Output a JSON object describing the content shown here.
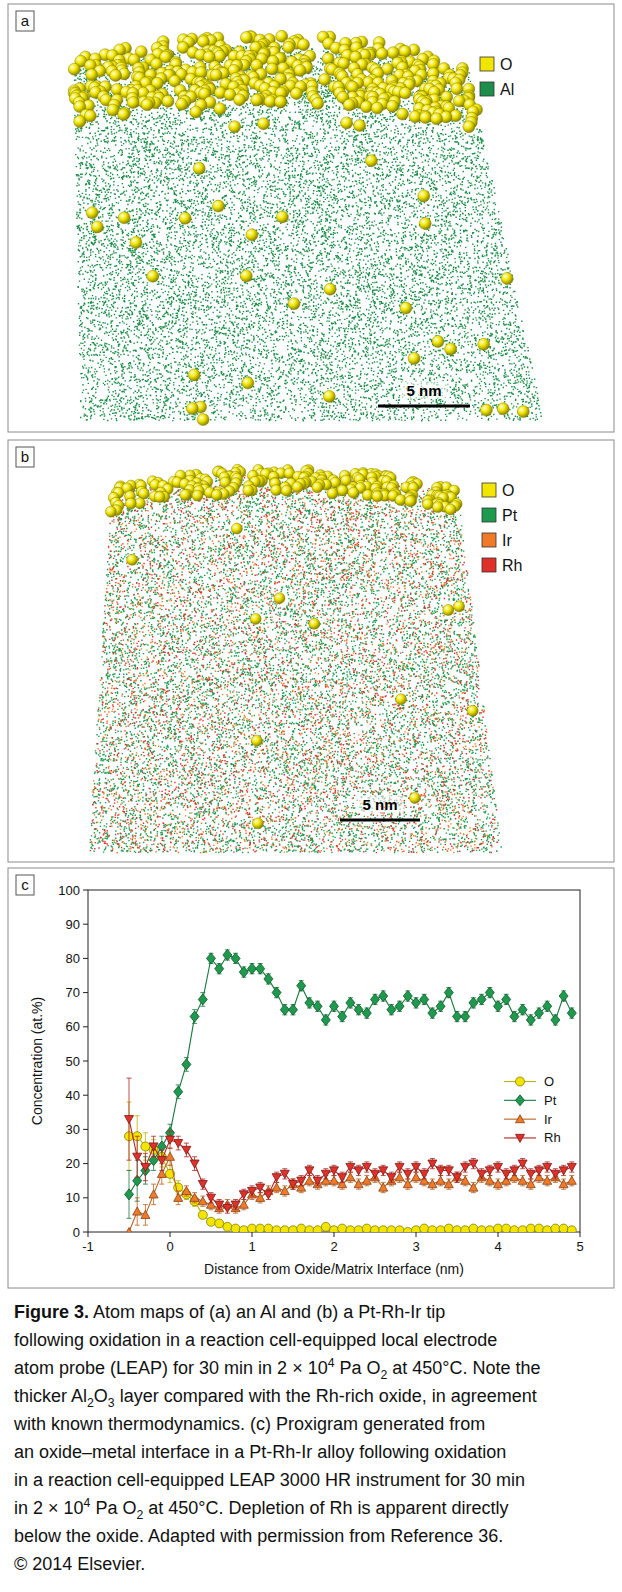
{
  "panel_letters": [
    "a",
    "b",
    "c"
  ],
  "panel_a": {
    "legend": [
      {
        "label": "O",
        "color": "#f2e600"
      },
      {
        "label": "Al",
        "color": "#1e8f4a"
      }
    ],
    "scale_bar": "5 nm"
  },
  "panel_b": {
    "legend": [
      {
        "label": "O",
        "color": "#f2e600"
      },
      {
        "label": "Pt",
        "color": "#1e9a4e"
      },
      {
        "label": "Ir",
        "color": "#f07a2a"
      },
      {
        "label": "Rh",
        "color": "#e0302a"
      }
    ],
    "scale_bar": "5 nm"
  },
  "chart_data": {
    "type": "line",
    "x_label": "Distance from Oxide/Matrix Interface (nm)",
    "y_label": "Concentration (at.%)",
    "xlim": [
      -1,
      5
    ],
    "ylim": [
      0,
      100
    ],
    "xticks": [
      -1,
      0,
      1,
      2,
      3,
      4,
      5
    ],
    "yticks": [
      0,
      10,
      20,
      30,
      40,
      50,
      60,
      70,
      80,
      90,
      100
    ],
    "grid": false,
    "legend": "right",
    "x": [
      -0.5,
      -0.4,
      -0.3,
      -0.2,
      -0.1,
      0,
      0.1,
      0.2,
      0.3,
      0.4,
      0.5,
      0.6,
      0.7,
      0.8,
      0.9,
      1.0,
      1.1,
      1.2,
      1.3,
      1.4,
      1.5,
      1.6,
      1.7,
      1.8,
      1.9,
      2.0,
      2.1,
      2.2,
      2.3,
      2.4,
      2.5,
      2.6,
      2.7,
      2.8,
      2.9,
      3.0,
      3.1,
      3.2,
      3.3,
      3.4,
      3.5,
      3.6,
      3.7,
      3.8,
      3.9,
      4.0,
      4.1,
      4.2,
      4.3,
      4.4,
      4.5,
      4.6,
      4.7,
      4.8,
      4.9
    ],
    "series": [
      {
        "name": "O",
        "color": "#f2e600",
        "marker": "circle",
        "line_style": "solid",
        "values": [
          28,
          28,
          25,
          24,
          22,
          17,
          13,
          11,
          9,
          5,
          3,
          2.5,
          1.5,
          1,
          0.5,
          1,
          1,
          1,
          0.5,
          0.5,
          0.5,
          1,
          0.5,
          0.5,
          1.5,
          0.5,
          1,
          0.5,
          0.5,
          1,
          0.5,
          0.5,
          0.5,
          0.5,
          0,
          0.5,
          1,
          0.5,
          0.5,
          1,
          0.5,
          0.5,
          1,
          0.5,
          0.5,
          1,
          1,
          0.5,
          0.5,
          1,
          1,
          0.5,
          1,
          1,
          0.5
        ],
        "errors": [
          10,
          6,
          4,
          3,
          3,
          2.5,
          2,
          1.5,
          1.5,
          1,
          0.8,
          0.8,
          0.8,
          0.8,
          0.8,
          0.8,
          0.8,
          0.8,
          0.8,
          0.8,
          0.8,
          0.8,
          0.8,
          0.8,
          0.8,
          0.8,
          0.8,
          0.8,
          0.8,
          0.8,
          0.8,
          0.8,
          0.8,
          0.8,
          0.8,
          0.8,
          0.8,
          0.8,
          0.8,
          0.8,
          0.8,
          0.8,
          0.8,
          0.8,
          0.8,
          0.8,
          0.8,
          0.8,
          0.8,
          0.8,
          0.8,
          0.8,
          0.8,
          0.8,
          0.8
        ]
      },
      {
        "name": "Pt",
        "color": "#1e9a4e",
        "marker": "diamond",
        "line_style": "solid",
        "values": [
          11,
          15,
          18,
          21,
          25,
          29,
          41,
          49,
          63,
          68,
          80,
          77,
          81,
          80,
          76,
          77,
          77,
          74,
          70,
          65,
          65,
          72,
          67,
          66,
          62,
          66,
          63,
          67,
          65,
          64,
          68,
          69,
          65,
          66,
          69,
          67,
          68,
          64,
          66,
          70,
          63,
          63,
          67,
          68,
          70,
          66,
          68,
          63,
          65,
          62,
          64,
          66,
          62,
          69,
          64
        ],
        "errors": [
          7,
          6,
          4,
          3,
          3,
          2.5,
          2,
          2,
          2,
          2,
          1.5,
          1.5,
          1.5,
          1.5,
          1.5,
          1.5,
          1.5,
          1.5,
          1.5,
          1.5,
          1.5,
          1.5,
          1.5,
          1.5,
          1.5,
          1.5,
          1.5,
          1.5,
          1.5,
          1.5,
          1.5,
          1.5,
          1.5,
          1.5,
          1.5,
          1.5,
          1.5,
          1.5,
          1.5,
          1.5,
          1.5,
          1.5,
          1.5,
          1.5,
          1.5,
          1.5,
          1.5,
          1.5,
          1.5,
          1.5,
          1.5,
          1.5,
          1.5,
          1.5,
          1.5
        ]
      },
      {
        "name": "Ir",
        "color": "#f07a2a",
        "marker": "triangle-up",
        "line_style": "solid",
        "values": [
          0,
          6,
          5,
          11,
          17,
          22,
          10,
          12,
          10,
          9,
          8,
          7,
          8,
          7,
          8,
          11,
          10,
          12,
          13,
          12,
          14,
          13,
          15,
          14,
          15,
          15,
          14,
          16,
          14,
          15,
          16,
          13,
          15,
          16,
          14,
          16,
          15,
          14,
          15,
          14,
          16,
          15,
          13,
          16,
          15,
          14,
          15,
          16,
          15,
          14,
          16,
          15,
          16,
          14,
          15
        ],
        "errors": [
          0,
          4,
          3,
          3,
          3,
          2.5,
          2,
          1.5,
          1.5,
          1.5,
          1.5,
          1.5,
          1.5,
          1.5,
          1.5,
          1.5,
          1.5,
          1.5,
          1.5,
          1.5,
          1.5,
          1.5,
          1.5,
          1.5,
          1.5,
          1.5,
          1.5,
          1.5,
          1.5,
          1.5,
          1.5,
          1.5,
          1.5,
          1.5,
          1.5,
          1.5,
          1.5,
          1.5,
          1.5,
          1.5,
          1.5,
          1.5,
          1.5,
          1.5,
          1.5,
          1.5,
          1.5,
          1.5,
          1.5,
          1.5,
          1.5,
          1.5,
          1.5,
          1.5,
          1.5
        ]
      },
      {
        "name": "Rh",
        "color": "#e0302a",
        "marker": "triangle-down",
        "line_style": "solid",
        "values": [
          33,
          22,
          19,
          25,
          21,
          27,
          26,
          24,
          20,
          14,
          10,
          8,
          7,
          8,
          11,
          12,
          13,
          11,
          16,
          17,
          14,
          15,
          18,
          15,
          17,
          18,
          16,
          19,
          18,
          19,
          17,
          18,
          16,
          19,
          17,
          19,
          17,
          20,
          18,
          18,
          16,
          19,
          20,
          17,
          18,
          19,
          17,
          18,
          20,
          17,
          18,
          19,
          17,
          18,
          19
        ],
        "errors": [
          12,
          6,
          4,
          3,
          3,
          2.5,
          2,
          2,
          2,
          1.5,
          1.5,
          1.5,
          1.5,
          1.5,
          1.5,
          1.5,
          1.5,
          1.5,
          1.5,
          1.5,
          1.5,
          1.5,
          1.5,
          1.5,
          1.5,
          1.5,
          1.5,
          1.5,
          1.5,
          1.5,
          1.5,
          1.5,
          1.5,
          1.5,
          1.5,
          1.5,
          1.5,
          1.5,
          1.5,
          1.5,
          1.5,
          1.5,
          1.5,
          1.5,
          1.5,
          1.5,
          1.5,
          1.5,
          1.5,
          1.5,
          1.5,
          1.5,
          1.5,
          1.5,
          1.5
        ]
      }
    ]
  },
  "caption": {
    "lines": [
      [
        {
          "text": "Figure 3.",
          "style": "bold"
        },
        {
          "text": " Atom maps of (a) an Al and (b) a Pt-Rh-Ir tip",
          "style": "normal"
        }
      ],
      [
        {
          "text": "following oxidation in a reaction cell-equipped local electrode",
          "style": "normal"
        }
      ],
      [
        {
          "text": "atom probe (LEAP) for 30 min in 2 × 10",
          "style": "normal"
        },
        {
          "text": "4",
          "style": "sup"
        },
        {
          "text": " Pa O",
          "style": "normal"
        },
        {
          "text": "2",
          "style": "sub"
        },
        {
          "text": " at 450°C. Note the",
          "style": "normal"
        }
      ],
      [
        {
          "text": "thicker Al",
          "style": "normal"
        },
        {
          "text": "2",
          "style": "sub"
        },
        {
          "text": "O",
          "style": "normal"
        },
        {
          "text": "3",
          "style": "sub"
        },
        {
          "text": " layer compared with the Rh-rich oxide, in agreement",
          "style": "normal"
        }
      ],
      [
        {
          "text": "with known thermodynamics. (c) Proxigram generated from",
          "style": "normal"
        }
      ],
      [
        {
          "text": "an oxide–metal interface in a Pt-Rh-Ir alloy following oxidation",
          "style": "normal"
        }
      ],
      [
        {
          "text": "in a reaction cell-equipped LEAP 3000 HR instrument for 30 min",
          "style": "normal"
        }
      ],
      [
        {
          "text": "in 2 × 10",
          "style": "normal"
        },
        {
          "text": "4",
          "style": "sup"
        },
        {
          "text": " Pa O",
          "style": "normal"
        },
        {
          "text": "2",
          "style": "sub"
        },
        {
          "text": " at 450°C. Depletion of Rh is apparent directly",
          "style": "normal"
        }
      ],
      [
        {
          "text": "below the oxide. Adapted with permission from Reference 36.",
          "style": "normal"
        }
      ],
      [
        {
          "text": "© 2014 Elsevier.",
          "style": "normal"
        }
      ]
    ]
  }
}
